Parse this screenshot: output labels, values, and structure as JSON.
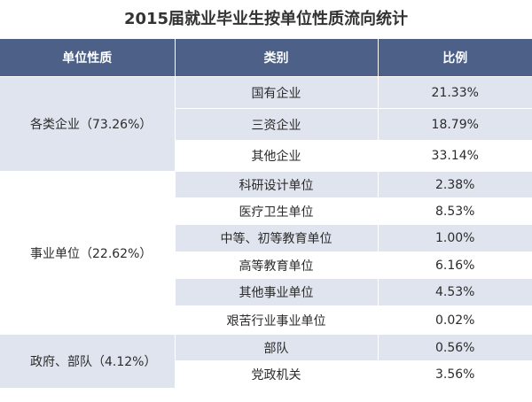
{
  "title": "2015届就业毕业生按单位性质流向统计",
  "headers": [
    "单位性质",
    "类别",
    "比例"
  ],
  "groups": [
    {
      "label": "各类企业（73.26%）",
      "rows": [
        {
          "category": "国有企业",
          "percent": "21.33%"
        },
        {
          "category": "三资企业",
          "percent": "18.79%"
        },
        {
          "category": "其他企业",
          "percent": "33.14%"
        }
      ]
    },
    {
      "label": "事业单位（22.62%）",
      "rows": [
        {
          "category": "科研设计单位",
          "percent": "2.38%"
        },
        {
          "category": "医疗卫生单位",
          "percent": "8.53%"
        },
        {
          "category": "中等、初等教育单位",
          "percent": "1.00%"
        },
        {
          "category": "高等教育单位",
          "percent": "6.16%"
        },
        {
          "category": "其他事业单位",
          "percent": "4.53%"
        },
        {
          "category": "艰苦行业事业单位",
          "percent": "0.02%"
        }
      ]
    },
    {
      "label": "政府、部队（4.12%）",
      "rows": [
        {
          "category": "部队",
          "percent": "0.56%"
        },
        {
          "category": "党政机关",
          "percent": "3.56%"
        }
      ]
    }
  ]
}
